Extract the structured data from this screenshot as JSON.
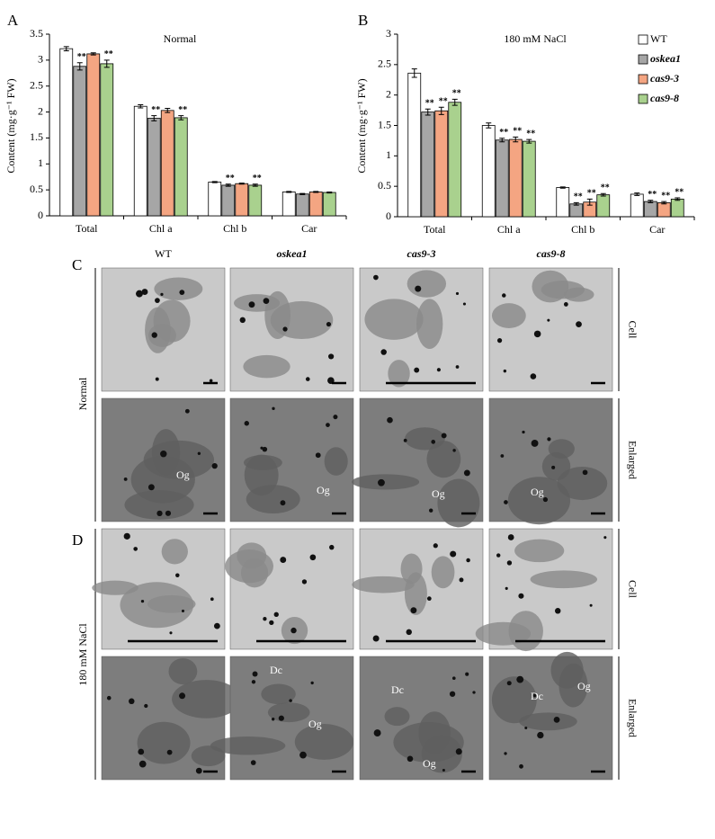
{
  "chart_data": [
    {
      "type": "bar",
      "panel": "A",
      "title": "Normal",
      "ylabel": "Content (mg·g⁻¹ FW)",
      "categories": [
        "Total",
        "Chl a",
        "Chl b",
        "Car"
      ],
      "ylim": [
        0,
        3.5
      ],
      "yticks": [
        0,
        0.5,
        1,
        1.5,
        2,
        2.5,
        3,
        3.5
      ],
      "series": [
        {
          "color": "#ffffff",
          "values": [
            3.22,
            2.11,
            0.65,
            0.46
          ],
          "errors": [
            0.04,
            0.03,
            0.01,
            0.01
          ],
          "significance": [
            null,
            null,
            null,
            null
          ]
        },
        {
          "color": "#a6a6a6",
          "values": [
            2.88,
            1.88,
            0.59,
            0.42
          ],
          "errors": [
            0.07,
            0.05,
            0.02,
            0.01
          ],
          "significance": [
            "**",
            "**",
            "**",
            null
          ]
        },
        {
          "color": "#f4a582",
          "values": [
            3.12,
            2.03,
            0.62,
            0.46
          ],
          "errors": [
            0.02,
            0.04,
            0.01,
            0.01
          ],
          "significance": [
            null,
            null,
            null,
            null
          ]
        },
        {
          "color": "#a9d18e",
          "values": [
            2.93,
            1.89,
            0.59,
            0.45
          ],
          "errors": [
            0.07,
            0.04,
            0.02,
            0.01
          ],
          "significance": [
            "**",
            "**",
            "**",
            null
          ]
        }
      ]
    },
    {
      "type": "bar",
      "panel": "B",
      "title": "180 mM NaCl",
      "ylabel": "Content (mg·g⁻¹ FW)",
      "categories": [
        "Total",
        "Chl a",
        "Chl b",
        "Car"
      ],
      "ylim": [
        0,
        3
      ],
      "yticks": [
        0,
        0.5,
        1,
        1.5,
        2,
        2.5,
        3
      ],
      "legend": "top-right",
      "series": [
        {
          "name": "WT",
          "color": "#ffffff",
          "values": [
            2.36,
            1.5,
            0.48,
            0.37
          ],
          "errors": [
            0.07,
            0.04,
            0.01,
            0.02
          ],
          "significance": [
            null,
            null,
            null,
            null
          ]
        },
        {
          "name": "oskea1",
          "color": "#a6a6a6",
          "values": [
            1.72,
            1.26,
            0.21,
            0.25
          ],
          "errors": [
            0.05,
            0.03,
            0.02,
            0.02
          ],
          "significance": [
            "**",
            "**",
            "**",
            "**"
          ]
        },
        {
          "name": "cas9-3",
          "color": "#f4a582",
          "values": [
            1.74,
            1.27,
            0.24,
            0.23
          ],
          "errors": [
            0.06,
            0.04,
            0.05,
            0.02
          ],
          "significance": [
            "**",
            "**",
            "**",
            "**"
          ]
        },
        {
          "name": "cas9-8",
          "color": "#a9d18e",
          "values": [
            1.88,
            1.24,
            0.36,
            0.29
          ],
          "errors": [
            0.05,
            0.03,
            0.02,
            0.02
          ],
          "significance": [
            "**",
            "**",
            "**",
            "**"
          ]
        }
      ]
    }
  ],
  "micrographs": {
    "panels": [
      "C",
      "D"
    ],
    "columns": [
      "WT",
      "oskea1",
      "cas9-3",
      "cas9-8"
    ],
    "conditions": [
      "Normal",
      "180 mM NaCl"
    ],
    "rows": [
      "Cell",
      "Enlarged",
      "Cell",
      "Enlarged"
    ],
    "annotations": [
      "Og",
      "Og",
      "Og",
      "Og",
      "Dc",
      "Og",
      "Dc",
      "Og",
      "Dc",
      "Og"
    ]
  }
}
